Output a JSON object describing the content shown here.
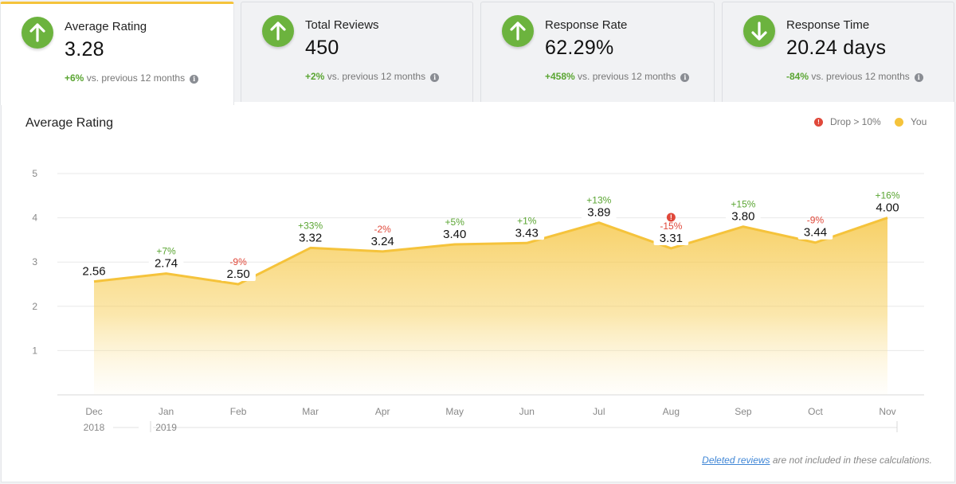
{
  "kpis": [
    {
      "label": "Average Rating",
      "value": "3.28",
      "pct": "+6%",
      "suffix": " vs. previous 12 months",
      "direction": "up",
      "active": true
    },
    {
      "label": "Total Reviews",
      "value": "450",
      "pct": "+2%",
      "suffix": " vs. previous 12 months",
      "direction": "up",
      "active": false
    },
    {
      "label": "Response Rate",
      "value": "62.29%",
      "pct": "+458%",
      "suffix": " vs. previous 12 months",
      "direction": "up",
      "active": false
    },
    {
      "label": "Response Time",
      "value": "20.24 days",
      "pct": "-84%",
      "suffix": " vs. previous 12 months",
      "direction": "down",
      "active": false
    }
  ],
  "panel": {
    "title": "Average Rating",
    "legend_drop": "Drop > 10%",
    "legend_you": "You",
    "footnote_link": "Deleted reviews",
    "footnote_rest": " are not included in these calculations."
  },
  "colors": {
    "accent": "#f5c33b",
    "up": "#5aa532",
    "down": "#e0483a",
    "grid": "#e6e6e6"
  },
  "chart_data": {
    "type": "area",
    "title": "Average Rating",
    "categories": [
      "Dec",
      "Jan",
      "Feb",
      "Mar",
      "Apr",
      "May",
      "Jun",
      "Jul",
      "Aug",
      "Sep",
      "Oct",
      "Nov"
    ],
    "years": [
      {
        "label": "2018",
        "start": 0
      },
      {
        "label": "2019",
        "start": 1
      }
    ],
    "series": [
      {
        "name": "You",
        "values": [
          2.56,
          2.74,
          2.5,
          3.32,
          3.24,
          3.4,
          3.43,
          3.89,
          3.31,
          3.8,
          3.44,
          4.0
        ],
        "labels": [
          "2.56",
          "2.74",
          "2.50",
          "3.32",
          "3.24",
          "3.40",
          "3.43",
          "3.89",
          "3.31",
          "3.80",
          "3.44",
          "4.00"
        ],
        "changes": [
          "",
          "+7%",
          "-9%",
          "+33%",
          "-2%",
          "+5%",
          "+1%",
          "+13%",
          "-15%",
          "+15%",
          "-9%",
          "+16%"
        ],
        "drop_flags": [
          false,
          false,
          false,
          false,
          false,
          false,
          false,
          false,
          true,
          false,
          false,
          false
        ]
      }
    ],
    "ylim": [
      0,
      5
    ],
    "yticks": [
      1,
      2,
      3,
      4,
      5
    ],
    "grid": true,
    "legend": "top-right"
  }
}
